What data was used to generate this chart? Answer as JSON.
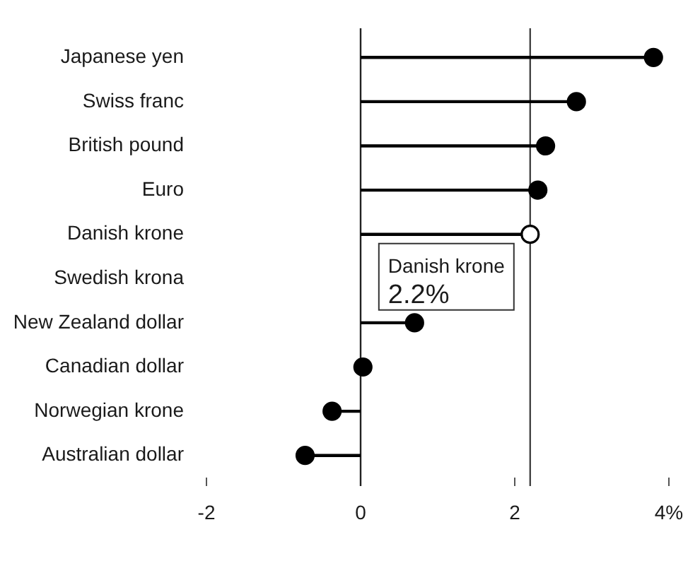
{
  "chart_data": {
    "type": "lollipop",
    "orientation": "horizontal",
    "categories": [
      "Japanese yen",
      "Swiss franc",
      "British pound",
      "Euro",
      "Danish krone",
      "Swedish krona",
      "New Zealand dollar",
      "Canadian dollar",
      "Norwegian krone",
      "Australian dollar"
    ],
    "series": [
      {
        "color": "#000000",
        "colors": [
          "#000000",
          "#000000",
          "#000000",
          "#000000",
          "#ffffff",
          "#000000",
          "#000000",
          "#000000",
          "#000000",
          "#000000"
        ],
        "values": [
          3.8,
          2.8,
          2.4,
          2.3,
          2.2,
          null,
          0.7,
          0.03,
          -0.37,
          -0.72
        ]
      }
    ],
    "xlim": [
      -2,
      4
    ],
    "xticks": [
      -2,
      0,
      2,
      {
        "value": 4,
        "label": "4%"
      }
    ],
    "ref_lines": [
      {
        "axis": "x",
        "value": 0,
        "color": "#222222"
      },
      {
        "axis": "x",
        "value": 2.2,
        "color": "#444444"
      }
    ],
    "annotations": [
      {
        "text": "Danish krone\n2.2%",
        "x": 2.2,
        "y": "Danish krone"
      }
    ],
    "grid": false,
    "legend": false,
    "marker": "circle"
  }
}
